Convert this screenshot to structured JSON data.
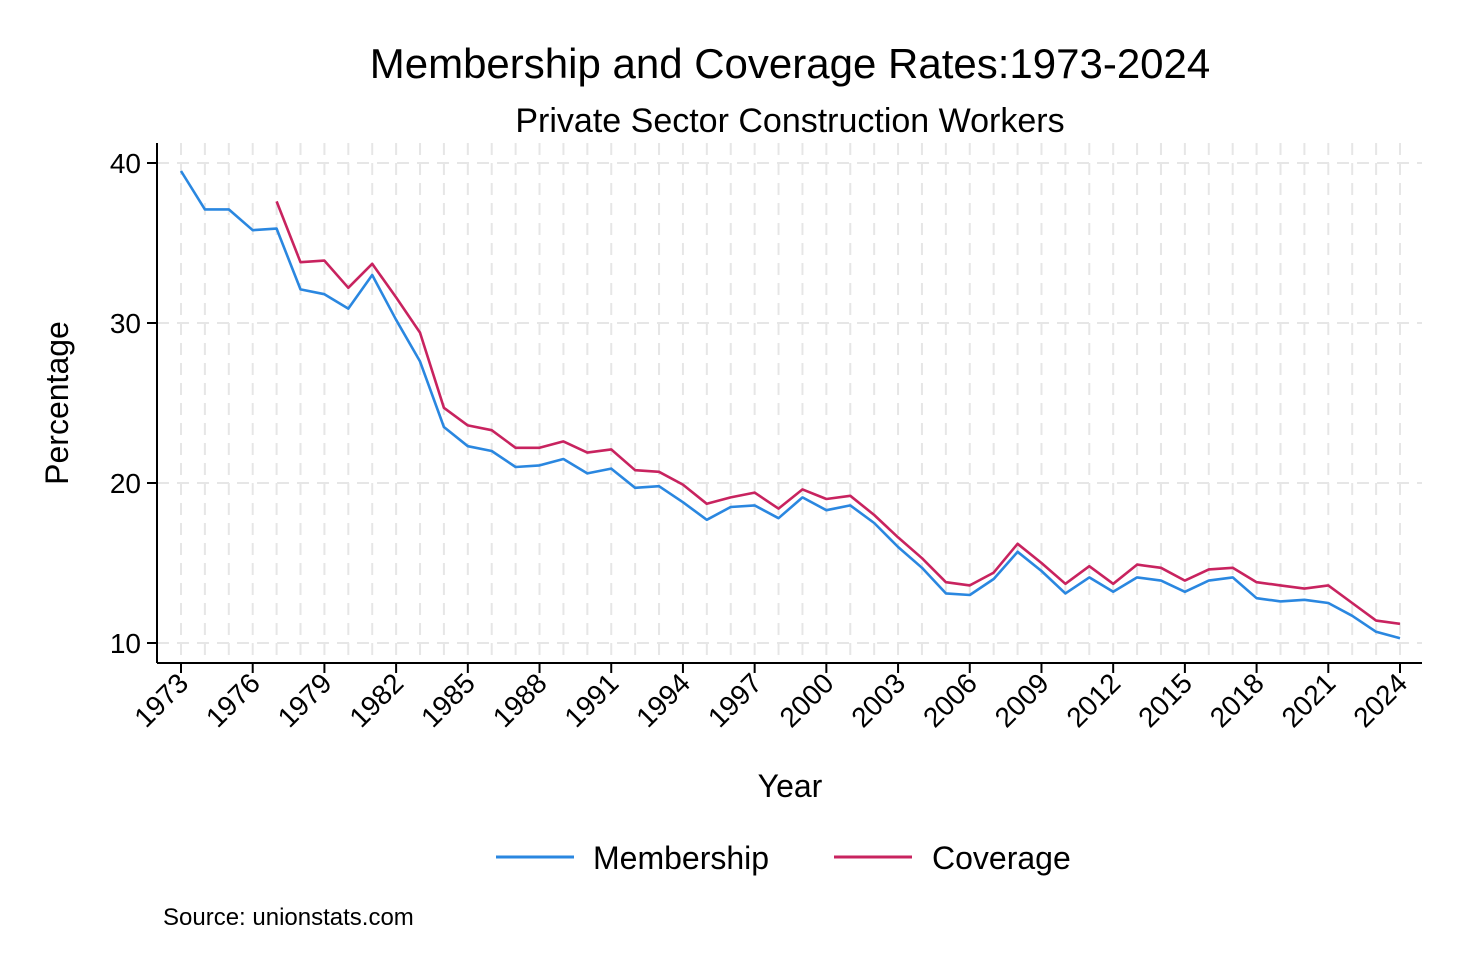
{
  "chart_data": {
    "type": "line",
    "title": "Membership and Coverage Rates:1973-2024",
    "subtitle": "Private Sector Construction Workers",
    "xlabel": "Year",
    "ylabel": "Percentage",
    "source": "Source: unionstats.com",
    "xlim": [
      1973,
      2024
    ],
    "ylim": [
      9.2,
      41.3
    ],
    "x_ticks": [
      1973,
      1976,
      1979,
      1982,
      1985,
      1988,
      1991,
      1994,
      1997,
      2000,
      2003,
      2006,
      2009,
      2012,
      2015,
      2018,
      2021,
      2024
    ],
    "x_tick_labels": [
      "1973",
      "1976",
      "1979",
      "1982",
      "1985",
      "1988",
      "1991",
      "1994",
      "1997",
      "2000",
      "2003",
      "2006",
      "2009",
      "2012",
      "2015",
      "2018",
      "2021",
      "2024"
    ],
    "y_ticks": [
      10,
      20,
      30,
      40
    ],
    "y_tick_labels": [
      "10",
      "20",
      "30",
      "40"
    ],
    "grid": true,
    "legend_position": "bottom",
    "x": [
      1973,
      1974,
      1975,
      1976,
      1977,
      1978,
      1979,
      1980,
      1981,
      1982,
      1983,
      1984,
      1985,
      1986,
      1987,
      1988,
      1989,
      1990,
      1991,
      1992,
      1993,
      1994,
      1995,
      1996,
      1997,
      1998,
      1999,
      2000,
      2001,
      2002,
      2003,
      2004,
      2005,
      2006,
      2007,
      2008,
      2009,
      2010,
      2011,
      2012,
      2013,
      2014,
      2015,
      2016,
      2017,
      2018,
      2019,
      2020,
      2021,
      2022,
      2023,
      2024
    ],
    "series": [
      {
        "name": "Membership",
        "color": "#2a87e0",
        "values": [
          39.5,
          37.1,
          37.1,
          35.8,
          35.9,
          32.1,
          31.8,
          30.9,
          33.0,
          30.2,
          27.6,
          23.5,
          22.3,
          22.0,
          21.0,
          21.1,
          21.5,
          20.6,
          20.9,
          19.7,
          19.8,
          18.8,
          17.7,
          18.5,
          18.6,
          17.8,
          19.1,
          18.3,
          18.6,
          17.5,
          16.0,
          14.7,
          13.1,
          13.0,
          14.0,
          15.7,
          14.5,
          13.1,
          14.1,
          13.2,
          14.1,
          13.9,
          13.2,
          13.9,
          14.1,
          12.8,
          12.6,
          12.7,
          12.5,
          11.7,
          10.7,
          10.3
        ]
      },
      {
        "name": "Coverage",
        "color": "#c8235f",
        "values": [
          null,
          null,
          null,
          null,
          37.6,
          33.8,
          33.9,
          32.2,
          33.7,
          31.6,
          29.4,
          24.7,
          23.6,
          23.3,
          22.2,
          22.2,
          22.6,
          21.9,
          22.1,
          20.8,
          20.7,
          19.9,
          18.7,
          19.1,
          19.4,
          18.4,
          19.6,
          19.0,
          19.2,
          18.0,
          16.6,
          15.3,
          13.8,
          13.6,
          14.4,
          16.2,
          15.0,
          13.7,
          14.8,
          13.7,
          14.9,
          14.7,
          13.9,
          14.6,
          14.7,
          13.8,
          13.6,
          13.4,
          13.6,
          12.5,
          11.4,
          11.2
        ]
      }
    ]
  }
}
